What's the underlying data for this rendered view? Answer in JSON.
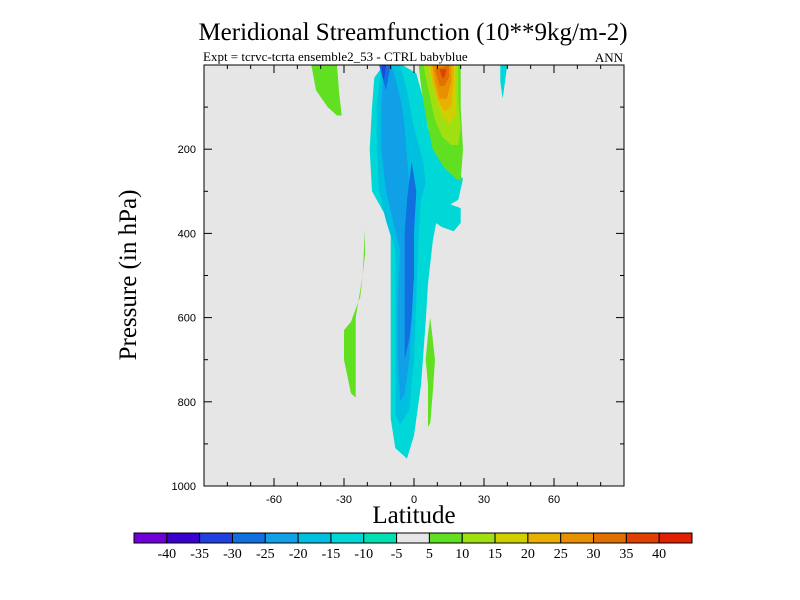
{
  "chart_data": {
    "type": "heatmap",
    "title": "Meridional Streamfunction (10**9kg/m-2)",
    "subtitle": "Expt = tcrvc-tcrta  ensemble2_53 - CTRL babyblue",
    "season_label": "ANN",
    "xlabel": "Latitude",
    "ylabel": "Pressure (in hPa)",
    "xlim": [
      -90,
      90
    ],
    "ylim": [
      1000,
      0
    ],
    "x_ticks": [
      -60,
      -30,
      0,
      30,
      60
    ],
    "y_ticks": [
      200,
      400,
      600,
      800,
      1000
    ],
    "background_color": "#e6e6e6",
    "colorbar": {
      "colors": [
        "#7000d8",
        "#3a00d0",
        "#2040e0",
        "#1070e0",
        "#10a0e8",
        "#00c0e0",
        "#00d8d8",
        "#00e0b0",
        "#e6e6e6",
        "#60e020",
        "#a0e010",
        "#d0d000",
        "#e8b000",
        "#e89000",
        "#e07000",
        "#e04000",
        "#e02000"
      ],
      "labels": [
        "-40",
        "-35",
        "-30",
        "-25",
        "-20",
        "-15",
        "-10",
        "-5",
        "5",
        "10",
        "15",
        "20",
        "25",
        "30",
        "35",
        "40"
      ]
    },
    "contour_regions": [
      {
        "value": -10,
        "color": "#00d8d8",
        "points": [
          [
            -13,
            0
          ],
          [
            -5,
            0
          ],
          [
            1,
            20
          ],
          [
            4,
            80
          ],
          [
            6,
            150
          ],
          [
            12,
            215
          ],
          [
            18,
            255
          ],
          [
            21,
            270
          ],
          [
            19,
            320
          ],
          [
            13,
            340
          ],
          [
            10,
            360
          ],
          [
            8,
            420
          ],
          [
            6,
            520
          ],
          [
            5,
            610
          ],
          [
            3,
            760
          ],
          [
            0,
            880
          ],
          [
            -3,
            935
          ],
          [
            -8,
            910
          ],
          [
            -10,
            840
          ],
          [
            -10,
            700
          ],
          [
            -10,
            560
          ],
          [
            -10,
            460
          ],
          [
            -10,
            400
          ],
          [
            -13,
            350
          ],
          [
            -18,
            300
          ],
          [
            -19,
            200
          ],
          [
            -18,
            100
          ],
          [
            -17,
            30
          ]
        ]
      },
      {
        "value": -10,
        "color": "#00d8d8",
        "points": [
          [
            8,
            370
          ],
          [
            12,
            385
          ],
          [
            17,
            395
          ],
          [
            20,
            375
          ],
          [
            20,
            340
          ],
          [
            15,
            330
          ],
          [
            10,
            340
          ]
        ]
      },
      {
        "value": -10,
        "color": "#00d8d8",
        "points": [
          [
            37,
            0
          ],
          [
            40,
            0
          ],
          [
            38,
            80
          ],
          [
            37,
            40
          ]
        ]
      },
      {
        "value": -15,
        "color": "#00c0e0",
        "points": [
          [
            -14,
            0
          ],
          [
            -6,
            0
          ],
          [
            -3,
            60
          ],
          [
            0,
            150
          ],
          [
            4,
            230
          ],
          [
            5,
            280
          ],
          [
            3,
            320
          ],
          [
            2,
            400
          ],
          [
            1,
            560
          ],
          [
            0,
            700
          ],
          [
            -2,
            820
          ],
          [
            -6,
            855
          ],
          [
            -8,
            830
          ],
          [
            -8,
            700
          ],
          [
            -8,
            560
          ],
          [
            -8,
            440
          ],
          [
            -12,
            370
          ],
          [
            -15,
            300
          ],
          [
            -16,
            200
          ],
          [
            -16,
            100
          ]
        ]
      },
      {
        "value": -20,
        "color": "#10a0e8",
        "points": [
          [
            -13,
            0
          ],
          [
            -10,
            0
          ],
          [
            -8,
            30
          ],
          [
            -5,
            100
          ],
          [
            -4,
            150
          ],
          [
            -3,
            220
          ],
          [
            -2,
            280
          ],
          [
            -2,
            340
          ],
          [
            -1,
            420
          ],
          [
            -1,
            500
          ],
          [
            -1,
            600
          ],
          [
            -2,
            700
          ],
          [
            -4,
            780
          ],
          [
            -6,
            800
          ],
          [
            -7,
            700
          ],
          [
            -7,
            560
          ],
          [
            -6,
            440
          ],
          [
            -9,
            370
          ],
          [
            -12,
            300
          ],
          [
            -14,
            200
          ],
          [
            -14,
            100
          ]
        ]
      },
      {
        "value": -25,
        "color": "#1070e0",
        "points": [
          [
            -15,
            0
          ],
          [
            -10,
            0
          ],
          [
            -12,
            60
          ],
          [
            -13,
            40
          ]
        ]
      },
      {
        "value": -25,
        "color": "#1070e0",
        "points": [
          [
            -1,
            230
          ],
          [
            1,
            300
          ],
          [
            0,
            400
          ],
          [
            0,
            500
          ],
          [
            -1,
            600
          ],
          [
            -2,
            650
          ],
          [
            -4,
            700
          ],
          [
            -4,
            620
          ],
          [
            -4,
            500
          ],
          [
            -4,
            400
          ],
          [
            -3,
            320
          ]
        ]
      },
      {
        "value": -30,
        "color": "#2040e0",
        "points": [
          [
            -14,
            0
          ],
          [
            -12,
            0
          ],
          [
            -13,
            40
          ],
          [
            -13.5,
            20
          ]
        ]
      },
      {
        "value": 5,
        "color": "#60e020",
        "points": [
          [
            -44,
            0
          ],
          [
            -33,
            0
          ],
          [
            -32,
            70
          ],
          [
            -31,
            120
          ],
          [
            -33,
            120
          ],
          [
            -37,
            100
          ],
          [
            -42,
            60
          ]
        ]
      },
      {
        "value": 5,
        "color": "#60e020",
        "points": [
          [
            -21,
            390
          ],
          [
            -22,
            500
          ],
          [
            -23,
            550
          ],
          [
            -27,
            610
          ],
          [
            -30,
            630
          ],
          [
            -30,
            700
          ],
          [
            -27,
            780
          ],
          [
            -25,
            790
          ],
          [
            -25,
            700
          ],
          [
            -25,
            600
          ],
          [
            -22,
            500
          ],
          [
            -21,
            450
          ]
        ]
      },
      {
        "value": 5,
        "color": "#60e020",
        "points": [
          [
            7,
            600
          ],
          [
            9,
            700
          ],
          [
            8,
            780
          ],
          [
            7,
            850
          ],
          [
            6,
            860
          ],
          [
            6,
            760
          ],
          [
            5,
            700
          ],
          [
            6,
            640
          ]
        ]
      },
      {
        "value": 5,
        "color": "#60e020",
        "points": [
          [
            2,
            0
          ],
          [
            20,
            0
          ],
          [
            20,
            100
          ],
          [
            21,
            200
          ],
          [
            20,
            275
          ],
          [
            18,
            270
          ],
          [
            13,
            245
          ],
          [
            8,
            200
          ],
          [
            5,
            120
          ],
          [
            3,
            50
          ]
        ]
      },
      {
        "value": 10,
        "color": "#a0e010",
        "points": [
          [
            4,
            0
          ],
          [
            19,
            0
          ],
          [
            19,
            80
          ],
          [
            20,
            150
          ],
          [
            19,
            190
          ],
          [
            16,
            190
          ],
          [
            12,
            170
          ],
          [
            9,
            130
          ],
          [
            7,
            80
          ]
        ]
      },
      {
        "value": 15,
        "color": "#d0d000",
        "points": [
          [
            6,
            0
          ],
          [
            18,
            0
          ],
          [
            18,
            60
          ],
          [
            18,
            120
          ],
          [
            15,
            140
          ],
          [
            12,
            120
          ],
          [
            9,
            70
          ]
        ]
      },
      {
        "value": 20,
        "color": "#e8b000",
        "points": [
          [
            7,
            0
          ],
          [
            17,
            0
          ],
          [
            17,
            40
          ],
          [
            16,
            100
          ],
          [
            13,
            110
          ],
          [
            10,
            80
          ],
          [
            8,
            40
          ]
        ]
      },
      {
        "value": 25,
        "color": "#e89000",
        "points": [
          [
            8,
            0
          ],
          [
            16,
            0
          ],
          [
            16,
            40
          ],
          [
            14,
            80
          ],
          [
            11,
            80
          ],
          [
            9,
            40
          ]
        ]
      },
      {
        "value": 30,
        "color": "#e07000",
        "points": [
          [
            9,
            10
          ],
          [
            15,
            0
          ],
          [
            15,
            30
          ],
          [
            13,
            50
          ],
          [
            11,
            50
          ]
        ]
      },
      {
        "value": 35,
        "color": "#e04000",
        "points": [
          [
            11,
            10
          ],
          [
            14,
            10
          ],
          [
            13,
            30
          ],
          [
            12,
            30
          ]
        ]
      }
    ]
  }
}
